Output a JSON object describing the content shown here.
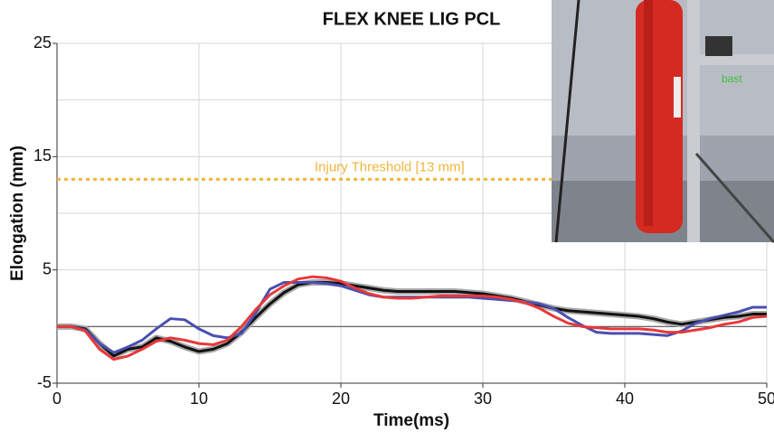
{
  "chart_data": {
    "type": "line",
    "title": "FLEX KNEE LIG PCL",
    "x_label": "Time(ms)",
    "y_label": "Elongation (mm)",
    "x": [
      0,
      1,
      2,
      3,
      4,
      5,
      6,
      7,
      8,
      9,
      10,
      11,
      12,
      13,
      14,
      15,
      16,
      17,
      18,
      19,
      20,
      21,
      22,
      23,
      24,
      25,
      26,
      27,
      28,
      29,
      30,
      31,
      32,
      33,
      34,
      35,
      36,
      37,
      38,
      39,
      40,
      41,
      42,
      43,
      44,
      45,
      46,
      47,
      48,
      49,
      50
    ],
    "series": [
      {
        "color": "#111111",
        "values": [
          0,
          0,
          -0.2,
          -1.5,
          -2.6,
          -2.0,
          -1.8,
          -1.0,
          -1.3,
          -1.8,
          -2.2,
          -2.0,
          -1.5,
          -0.5,
          0.8,
          2.0,
          3.0,
          3.7,
          3.9,
          3.9,
          3.8,
          3.6,
          3.4,
          3.2,
          3.1,
          3.1,
          3.1,
          3.1,
          3.1,
          3.0,
          2.9,
          2.7,
          2.5,
          2.2,
          1.9,
          1.6,
          1.4,
          1.3,
          1.2,
          1.1,
          1.0,
          0.9,
          0.7,
          0.4,
          0.2,
          0.4,
          0.6,
          0.8,
          0.9,
          1.1,
          1.1
        ]
      },
      {
        "color": "#4a4fb0",
        "values": [
          0,
          0,
          -0.3,
          -1.5,
          -2.3,
          -1.8,
          -1.2,
          -0.2,
          0.7,
          0.6,
          -0.2,
          -0.8,
          -1.0,
          -0.6,
          1.2,
          3.3,
          3.9,
          3.9,
          3.9,
          3.8,
          3.6,
          3.2,
          2.8,
          2.6,
          2.6,
          2.6,
          2.6,
          2.6,
          2.6,
          2.6,
          2.5,
          2.4,
          2.3,
          2.2,
          2.0,
          1.6,
          0.8,
          0.1,
          -0.5,
          -0.6,
          -0.6,
          -0.6,
          -0.7,
          -0.8,
          -0.4,
          0.3,
          0.7,
          1.0,
          1.3,
          1.7,
          1.7
        ]
      },
      {
        "color": "#e8383a",
        "values": [
          0,
          0,
          -0.4,
          -2.0,
          -2.9,
          -2.6,
          -2.0,
          -1.3,
          -1.0,
          -1.2,
          -1.5,
          -1.6,
          -1.2,
          0,
          1.5,
          2.8,
          3.6,
          4.2,
          4.4,
          4.3,
          4.0,
          3.4,
          2.9,
          2.6,
          2.5,
          2.5,
          2.6,
          2.7,
          2.7,
          2.7,
          2.7,
          2.6,
          2.4,
          2.1,
          1.6,
          0.9,
          0.3,
          0.0,
          -0.1,
          -0.2,
          -0.2,
          -0.2,
          -0.3,
          -0.5,
          -0.5,
          -0.3,
          -0.1,
          0.2,
          0.4,
          0.8,
          0.9
        ]
      }
    ],
    "xlim": [
      0,
      50
    ],
    "xticks": [
      0,
      10,
      20,
      30,
      40,
      50
    ],
    "ylim": [
      -5,
      25
    ],
    "yticks": [
      -5,
      5,
      15,
      25
    ],
    "y_minor_gridlines": [
      0,
      10,
      20
    ],
    "grid": true,
    "zero_line": true,
    "threshold": {
      "value": 13,
      "label": "Injury Threshold [13 mm]",
      "color": "#f2b53a"
    }
  },
  "inset_photo": {
    "label": "bast"
  }
}
